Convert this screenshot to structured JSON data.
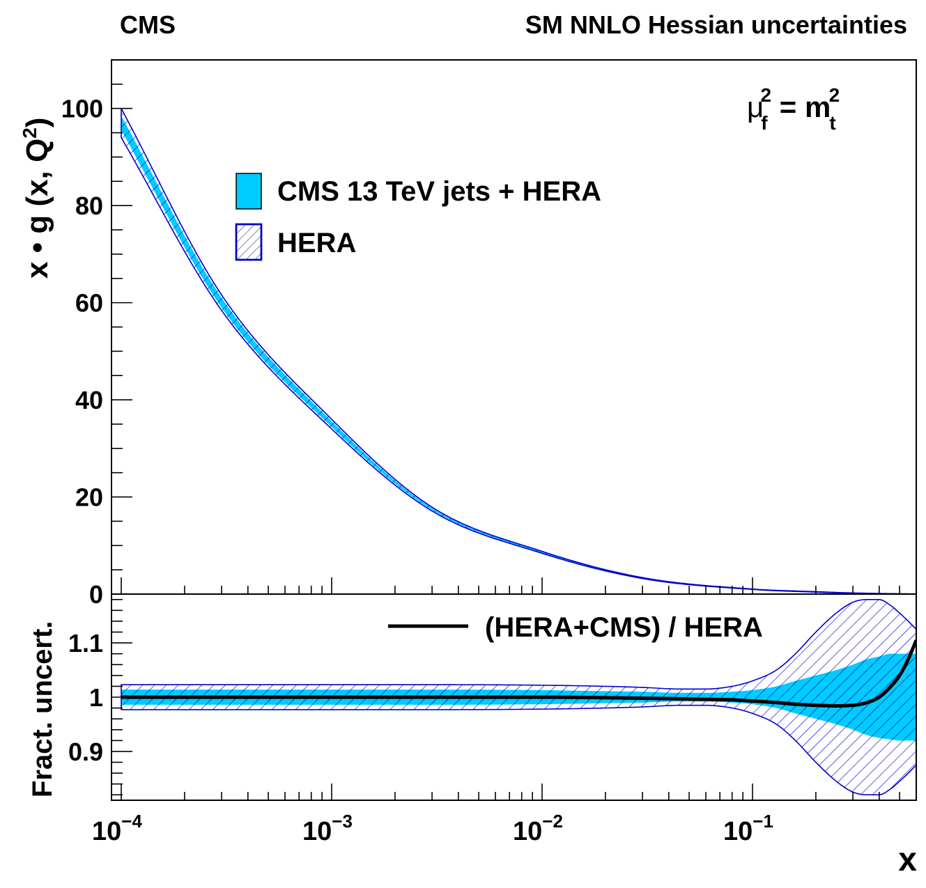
{
  "header": {
    "experiment": "CMS",
    "fit_description": "SM NNLO Hessian uncertainties"
  },
  "colors": {
    "cms_band": "#00CCFF",
    "hera_band": "#0000CC",
    "ratio_line": "#000000",
    "frame": "#000000"
  },
  "chart_data": [
    {
      "name": "gluon-pdf",
      "type": "area",
      "ylabel_main": "x • g (x, Q",
      "ylabel_sup": "2",
      "ylabel_close": ")",
      "scale_label": {
        "mu": "μ",
        "mu_sub": "f",
        "mu_sup": "2",
        "eq": " = m",
        "m_sub": "t",
        "m_sup": "2"
      },
      "x_scale": "log",
      "xlim": [
        0.0001,
        0.6
      ],
      "ylim": [
        0,
        110
      ],
      "y_ticks": [
        0,
        20,
        40,
        60,
        80,
        100
      ],
      "y_tick_labels": [
        "0",
        "20",
        "40",
        "60",
        "80",
        "100"
      ],
      "legend": [
        {
          "label": "CMS 13 TeV jets + HERA",
          "style": "solid"
        },
        {
          "label": "HERA",
          "style": "hatched"
        }
      ],
      "legend_position": "upper-middle",
      "x": [
        0.0001,
        0.0003,
        0.001,
        0.003,
        0.01,
        0.03,
        0.1,
        0.2,
        0.3,
        0.6
      ],
      "series": [
        {
          "name": "CMS 13 TeV jets + HERA (central)",
          "values": [
            97.0,
            60.0,
            35.0,
            17.5,
            8.6,
            3.3,
            1.0,
            0.45,
            0.2,
            0.02
          ]
        },
        {
          "name": "CMS 13 TeV jets + HERA (upper)",
          "values": [
            98.5,
            61.0,
            35.6,
            17.7,
            8.7,
            3.35,
            1.02,
            0.47,
            0.22,
            0.025
          ]
        },
        {
          "name": "CMS 13 TeV jets + HERA (lower)",
          "values": [
            95.5,
            59.0,
            34.4,
            17.3,
            8.5,
            3.25,
            0.98,
            0.43,
            0.18,
            0.015
          ]
        },
        {
          "name": "HERA (upper)",
          "values": [
            100.0,
            61.6,
            36.0,
            17.9,
            8.8,
            3.4,
            1.04,
            0.5,
            0.24,
            0.03
          ]
        },
        {
          "name": "HERA (lower)",
          "values": [
            94.0,
            58.4,
            34.0,
            17.1,
            8.4,
            3.2,
            0.96,
            0.4,
            0.16,
            0.01
          ]
        }
      ]
    },
    {
      "name": "fractional-uncertainty",
      "type": "area",
      "ylabel": "Fract. uncert.",
      "xlabel": "x",
      "x_scale": "log",
      "xlim": [
        0.0001,
        0.6
      ],
      "ylim": [
        0.81,
        1.19
      ],
      "y_ticks": [
        0.9,
        1,
        1.1
      ],
      "y_tick_labels": [
        "0.9",
        "1",
        "1.1"
      ],
      "x_ticks": [
        0.0001,
        0.001,
        0.01,
        0.1
      ],
      "x_tick_base": [
        "10",
        "10",
        "10",
        "10"
      ],
      "x_tick_exp": [
        "−4",
        "−3",
        "−2",
        "−1"
      ],
      "legend": [
        {
          "label": "(HERA+CMS) / HERA",
          "style": "line"
        }
      ],
      "legend_position": "top-right",
      "x": [
        0.0001,
        0.0003,
        0.001,
        0.003,
        0.01,
        0.02,
        0.03,
        0.045,
        0.06,
        0.08,
        0.1,
        0.13,
        0.16,
        0.2,
        0.25,
        0.3,
        0.35,
        0.4,
        0.45,
        0.5,
        0.55,
        0.6
      ],
      "series": [
        {
          "name": "(HERA+CMS) / HERA",
          "values": [
            1.0,
            1.0,
            1.0,
            1.0,
            1.0,
            0.999,
            0.998,
            0.997,
            0.996,
            0.995,
            0.993,
            0.99,
            0.987,
            0.985,
            0.984,
            0.985,
            0.99,
            1.0,
            1.018,
            1.04,
            1.07,
            1.105
          ]
        },
        {
          "name": "HERA+CMS band upper",
          "values": [
            1.014,
            1.014,
            1.014,
            1.014,
            1.013,
            1.011,
            1.01,
            1.008,
            1.008,
            1.01,
            1.013,
            1.02,
            1.03,
            1.04,
            1.05,
            1.06,
            1.07,
            1.075,
            1.08,
            1.08,
            1.08,
            1.08
          ]
        },
        {
          "name": "HERA+CMS band lower",
          "values": [
            0.986,
            0.986,
            0.986,
            0.986,
            0.987,
            0.989,
            0.99,
            0.992,
            0.992,
            0.99,
            0.987,
            0.98,
            0.97,
            0.96,
            0.95,
            0.94,
            0.93,
            0.925,
            0.922,
            0.92,
            0.92,
            0.92
          ]
        },
        {
          "name": "HERA band upper",
          "values": [
            1.023,
            1.023,
            1.023,
            1.023,
            1.022,
            1.02,
            1.018,
            1.015,
            1.015,
            1.02,
            1.03,
            1.05,
            1.08,
            1.12,
            1.155,
            1.175,
            1.18,
            1.18,
            1.17,
            1.155,
            1.14,
            1.125
          ]
        },
        {
          "name": "HERA band lower",
          "values": [
            0.977,
            0.977,
            0.977,
            0.977,
            0.978,
            0.98,
            0.982,
            0.985,
            0.985,
            0.98,
            0.97,
            0.95,
            0.92,
            0.88,
            0.845,
            0.825,
            0.82,
            0.82,
            0.83,
            0.845,
            0.86,
            0.875
          ]
        }
      ]
    }
  ]
}
